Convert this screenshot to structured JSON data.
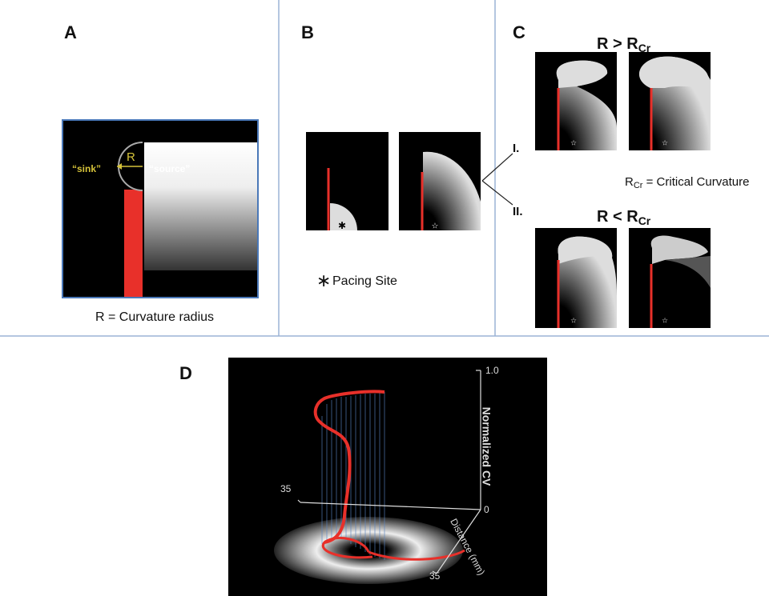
{
  "panels": {
    "a": {
      "label": "A",
      "sink": "“sink”",
      "radius": "R",
      "source": "“source”",
      "caption": "R = Curvature radius"
    },
    "b": {
      "label": "B",
      "marker": "∗",
      "caption": "Pacing Site"
    },
    "c": {
      "label": "C",
      "upper_title": {
        "main": "R > R",
        "sub": "Cr"
      },
      "case_1": "I.",
      "definition": {
        "main": "R",
        "sub": "Cr",
        "rest": " = Critical Curvature"
      },
      "case_2": "II.",
      "lower_title": {
        "main": "R < R",
        "sub": "Cr"
      }
    },
    "d": {
      "label": "D",
      "z_top": "1.0",
      "z_axis_title": "Normalized CV",
      "z_bottom": "0",
      "left_tick": "35",
      "distance_title": "Distance (mm)",
      "distance_end": "35"
    }
  }
}
